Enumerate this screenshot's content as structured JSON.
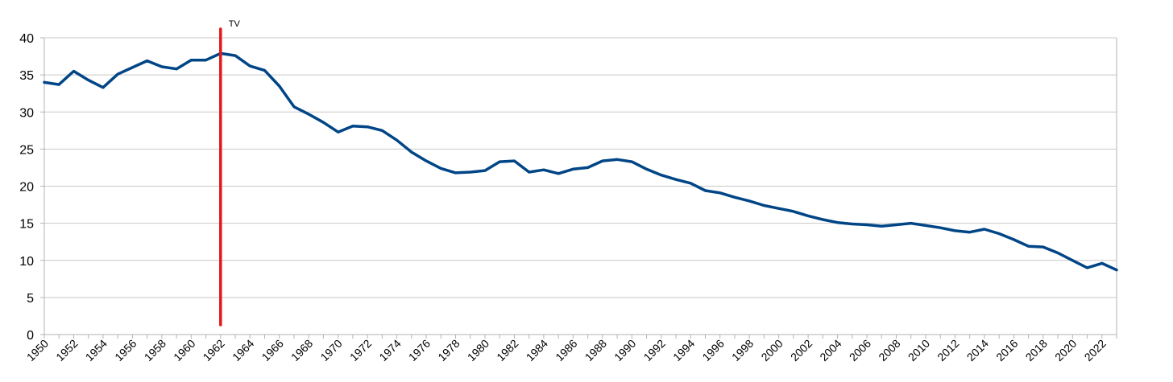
{
  "chart_data": {
    "type": "line",
    "title": "",
    "xlabel": "",
    "ylabel": "",
    "x": [
      1950,
      1951,
      1952,
      1953,
      1954,
      1955,
      1956,
      1957,
      1958,
      1959,
      1960,
      1961,
      1962,
      1963,
      1964,
      1965,
      1966,
      1967,
      1968,
      1969,
      1970,
      1971,
      1972,
      1973,
      1974,
      1975,
      1976,
      1977,
      1978,
      1979,
      1980,
      1981,
      1982,
      1983,
      1984,
      1985,
      1986,
      1987,
      1988,
      1989,
      1990,
      1991,
      1992,
      1993,
      1994,
      1995,
      1996,
      1997,
      1998,
      1999,
      2000,
      2001,
      2002,
      2003,
      2004,
      2005,
      2006,
      2007,
      2008,
      2009,
      2010,
      2011,
      2012,
      2013,
      2014,
      2015,
      2016,
      2017,
      2018,
      2019,
      2020,
      2021,
      2022,
      2023
    ],
    "series": [
      {
        "values": [
          34.0,
          33.7,
          35.5,
          34.3,
          33.3,
          35.1,
          36.0,
          36.9,
          36.1,
          35.8,
          37.0,
          37.0,
          37.9,
          37.6,
          36.2,
          35.6,
          33.5,
          30.7,
          29.7,
          28.6,
          27.3,
          28.1,
          28.0,
          27.5,
          26.2,
          24.6,
          23.4,
          22.4,
          21.8,
          21.9,
          22.1,
          23.3,
          23.4,
          21.9,
          22.2,
          21.7,
          22.3,
          22.5,
          23.4,
          23.6,
          23.3,
          22.3,
          21.5,
          20.9,
          20.4,
          19.4,
          19.1,
          18.5,
          18.0,
          17.4,
          17.0,
          16.6,
          16.0,
          15.5,
          15.1,
          14.9,
          14.8,
          14.6,
          14.8,
          15.0,
          14.7,
          14.4,
          14.0,
          13.8,
          14.2,
          13.6,
          12.8,
          11.9,
          11.8,
          11.0,
          10.0,
          9.0,
          9.6,
          8.7
        ],
        "color": "#004586"
      }
    ],
    "ylim": [
      0,
      40
    ],
    "yticks": [
      0,
      5,
      10,
      15,
      20,
      25,
      30,
      35,
      40
    ],
    "xtick_labels": [
      "1950",
      "1952",
      "1954",
      "1956",
      "1958",
      "1960",
      "1962",
      "1964",
      "1966",
      "1968",
      "1970",
      "1972",
      "1974",
      "1976",
      "1978",
      "1980",
      "1982",
      "1984",
      "1986",
      "1988",
      "1990",
      "1992",
      "1994",
      "1996",
      "1998",
      "2000",
      "2002",
      "2004",
      "2006",
      "2008",
      "2010",
      "2012",
      "2014",
      "2016",
      "2018",
      "2020",
      "2022"
    ],
    "grid": true,
    "legend": "none",
    "annotations": [
      {
        "text": "TV",
        "x": 1962,
        "color": "#e3191b"
      }
    ]
  }
}
